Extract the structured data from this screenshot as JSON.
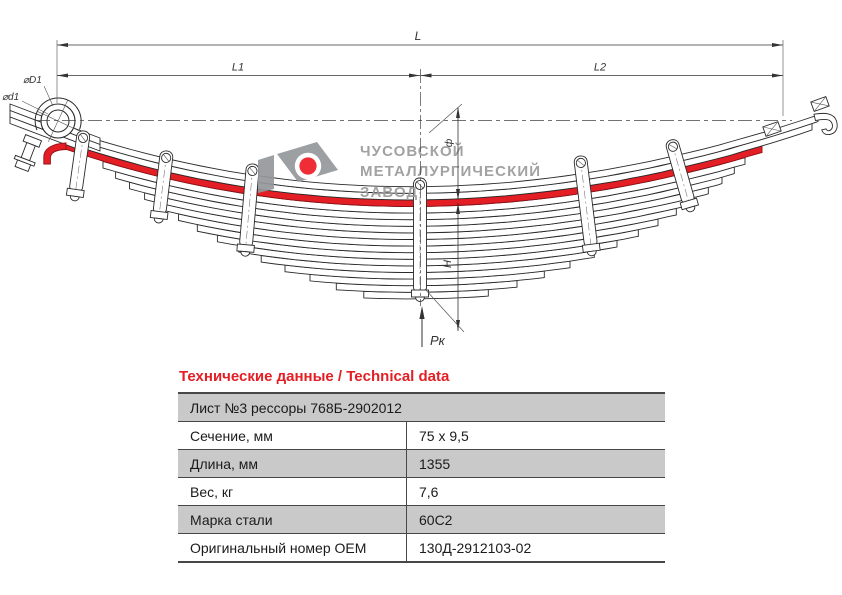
{
  "colors": {
    "accent_red": "#e31e24",
    "leaf_highlight": "#e31e24",
    "row_gray": "#c9c9c9",
    "watermark_gray": "#9b9b9b"
  },
  "drawing": {
    "dim_labels": {
      "L": "L",
      "L1": "L1",
      "L2": "L2",
      "D1": "⌀D1",
      "d1": "⌀d1",
      "camber": "ф",
      "height": "H",
      "load": "Pк"
    },
    "watermark": {
      "line1": "ЧУСОВСКОЙ",
      "line2": "МЕТАЛЛУРГИЧЕСКИЙ",
      "line3": "ЗАВОД"
    }
  },
  "table": {
    "title": "Технические данные / Technical data",
    "header": "Лист №3 рессоры 768Б-2902012",
    "rows": [
      {
        "label": "Сечение, мм",
        "value": "75 x 9,5"
      },
      {
        "label": "Длина, мм",
        "value": "1355"
      },
      {
        "label": "Вес, кг",
        "value": "7,6"
      },
      {
        "label": "Марка стали",
        "value": "60С2"
      },
      {
        "label": "Оригинальный номер OEM",
        "value": "130Д-2912103-02"
      }
    ]
  }
}
